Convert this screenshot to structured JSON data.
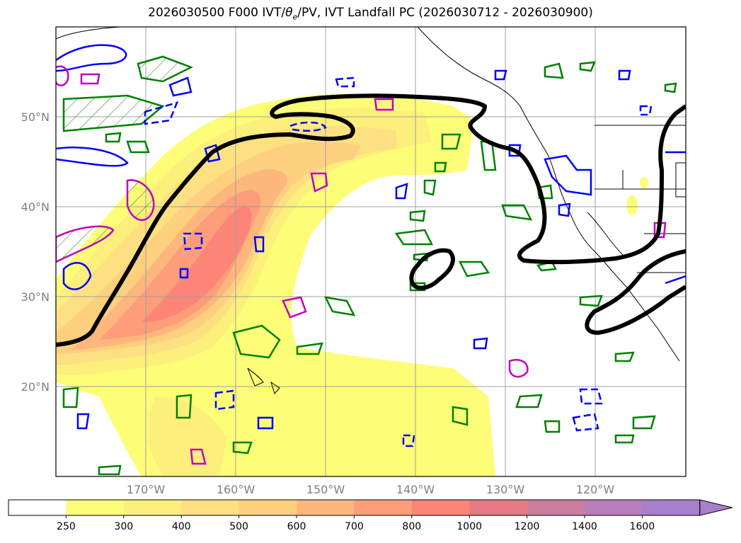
{
  "title": {
    "prefix": "2026030500 F000 IVT/",
    "theta": "θ",
    "theta_sub": "e",
    "suffix": "/PV, IVT Landfall PC (2026030712 - 2026030900)"
  },
  "map": {
    "lon_range": [
      -180,
      -110
    ],
    "lat_range": [
      10,
      60
    ],
    "lat_labels": [
      {
        "lat": 50,
        "text": "50°N"
      },
      {
        "lat": 40,
        "text": "40°N"
      },
      {
        "lat": 30,
        "text": "30°N"
      },
      {
        "lat": 20,
        "text": "20°N"
      }
    ],
    "lon_labels": [
      {
        "lon": -170,
        "text": "170°W"
      },
      {
        "lon": -160,
        "text": "160°W"
      },
      {
        "lon": -150,
        "text": "150°W"
      },
      {
        "lon": -140,
        "text": "140°W"
      },
      {
        "lon": -130,
        "text": "130°W"
      },
      {
        "lon": -120,
        "text": "120°W"
      }
    ],
    "gridlines": true
  },
  "colorbar": {
    "levels": [
      "250",
      "300",
      "400",
      "500",
      "600",
      "700",
      "800",
      "1000",
      "1200",
      "1400",
      "1600"
    ],
    "colors": [
      "#ffffff",
      "#fdfd78",
      "#fdef7c",
      "#fde081",
      "#fdd07f",
      "#fdb77d",
      "#fd9d7a",
      "#fc8578",
      "#e67a84",
      "#cc7e9f",
      "#b77eba",
      "#a87fcb"
    ],
    "extend": "max"
  },
  "contour_colors": {
    "theta_e": "#008000",
    "pv_positive": "#0000ff",
    "pv_negative": "#c000c0",
    "landfall_pc": "#000000"
  }
}
